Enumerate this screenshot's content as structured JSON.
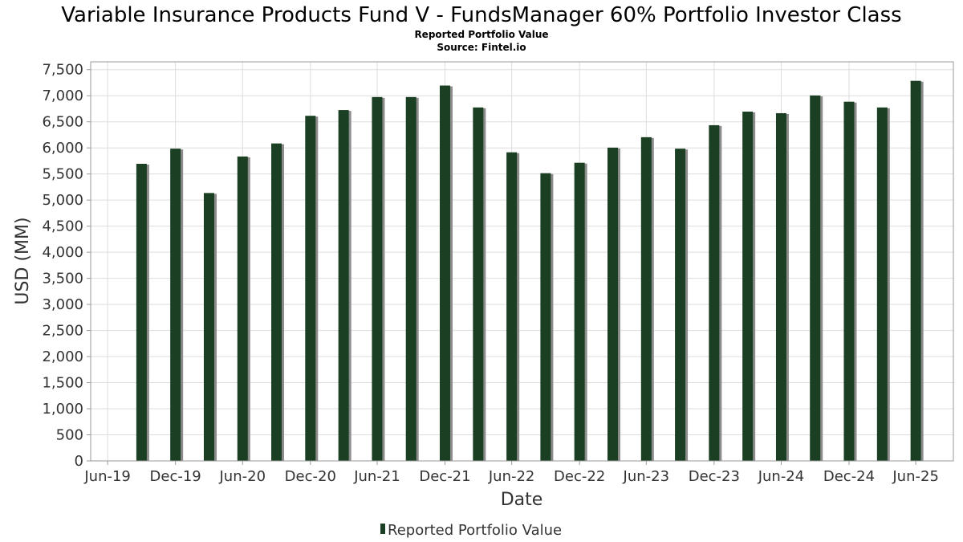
{
  "chart_data": {
    "type": "bar",
    "title": "Variable Insurance Products Fund V - FundsManager 60% Portfolio Investor Class",
    "subtitle": "Reported Portfolio Value",
    "source": "Source: Fintel.io",
    "xlabel": "Date",
    "ylabel": "USD (MM)",
    "ylim": [
      0,
      7650
    ],
    "yticks": [
      0,
      500,
      1000,
      1500,
      2000,
      2500,
      3000,
      3500,
      4000,
      4500,
      5000,
      5500,
      6000,
      6500,
      7000,
      7500
    ],
    "ytick_labels": [
      "0",
      "500",
      "1,000",
      "1,500",
      "2,000",
      "2,500",
      "3,000",
      "3,500",
      "4,000",
      "4,500",
      "5,000",
      "5,500",
      "6,000",
      "6,500",
      "7,000",
      "7,500"
    ],
    "xlim": [
      "2019-05-15",
      "2025-10-10"
    ],
    "xticks": [
      "2019-06-30",
      "2019-12-31",
      "2020-06-30",
      "2020-12-31",
      "2021-06-30",
      "2021-12-31",
      "2022-06-30",
      "2022-12-31",
      "2023-06-30",
      "2023-12-31",
      "2024-06-30",
      "2024-12-31",
      "2025-06-30"
    ],
    "xtick_labels": [
      "Jun-19",
      "Dec-19",
      "Jun-20",
      "Dec-20",
      "Jun-21",
      "Dec-21",
      "Jun-22",
      "Dec-22",
      "Jun-23",
      "Dec-23",
      "Jun-24",
      "Dec-24",
      "Jun-25"
    ],
    "grid": true,
    "legend_position": "bottom-center",
    "series": [
      {
        "name": "Reported Portfolio Value",
        "color": "#1a3f22",
        "shadow_color": "#8c8c8c",
        "points": [
          {
            "x": "2019-09-30",
            "y": 5680
          },
          {
            "x": "2019-12-31",
            "y": 5970
          },
          {
            "x": "2020-03-31",
            "y": 5120
          },
          {
            "x": "2020-06-30",
            "y": 5820
          },
          {
            "x": "2020-09-30",
            "y": 6070
          },
          {
            "x": "2020-12-31",
            "y": 6600
          },
          {
            "x": "2021-03-31",
            "y": 6710
          },
          {
            "x": "2021-06-30",
            "y": 6960
          },
          {
            "x": "2021-09-30",
            "y": 6960
          },
          {
            "x": "2021-12-31",
            "y": 7180
          },
          {
            "x": "2022-03-31",
            "y": 6760
          },
          {
            "x": "2022-06-30",
            "y": 5900
          },
          {
            "x": "2022-09-30",
            "y": 5500
          },
          {
            "x": "2022-12-31",
            "y": 5700
          },
          {
            "x": "2023-03-31",
            "y": 5990
          },
          {
            "x": "2023-06-30",
            "y": 6190
          },
          {
            "x": "2023-09-30",
            "y": 5970
          },
          {
            "x": "2023-12-31",
            "y": 6420
          },
          {
            "x": "2024-03-31",
            "y": 6680
          },
          {
            "x": "2024-06-30",
            "y": 6650
          },
          {
            "x": "2024-09-30",
            "y": 6990
          },
          {
            "x": "2024-12-31",
            "y": 6870
          },
          {
            "x": "2025-03-31",
            "y": 6760
          },
          {
            "x": "2025-06-30",
            "y": 7270
          }
        ]
      }
    ]
  }
}
